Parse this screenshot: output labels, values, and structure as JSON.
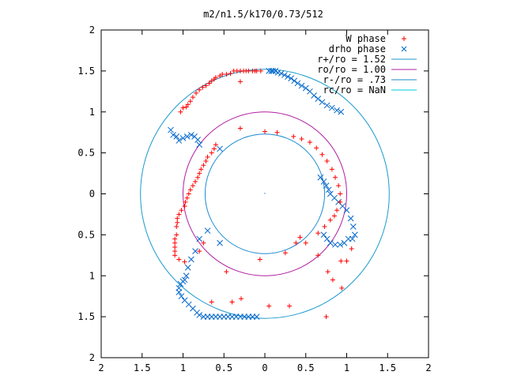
{
  "chart_data": {
    "type": "scatter",
    "title": "m2/n1.5/k170/0.73/512",
    "xlim": [
      -2,
      2
    ],
    "ylim": [
      -2,
      2
    ],
    "x_ticks": [
      -2,
      -1.5,
      -1,
      -0.5,
      0,
      0.5,
      1,
      1.5,
      2
    ],
    "y_ticks": [
      -2,
      -1.5,
      -1,
      -0.5,
      0,
      0.5,
      1,
      1.5,
      2
    ],
    "x_tick_labels": [
      "2",
      "1.5",
      "1",
      "0.5",
      "0",
      "0.5",
      "1",
      "1.5",
      "2"
    ],
    "y_tick_labels": [
      "2",
      "1.5",
      "1",
      "0.5",
      "0",
      "0.5",
      "1",
      "1.5",
      "2"
    ],
    "grid": false,
    "legend_position": "top-right",
    "series": [
      {
        "name": "W phase",
        "marker": "plus",
        "color": "#ff0000",
        "points": [
          [
            -0.05,
            1.5
          ],
          [
            -0.1,
            1.5
          ],
          [
            -0.12,
            1.5
          ],
          [
            -0.15,
            1.5
          ],
          [
            -0.2,
            1.5
          ],
          [
            -0.23,
            1.5
          ],
          [
            -0.26,
            1.5
          ],
          [
            -0.3,
            1.5
          ],
          [
            -0.34,
            1.5
          ],
          [
            -0.38,
            1.5
          ],
          [
            -0.42,
            1.47
          ],
          [
            -0.47,
            1.46
          ],
          [
            -0.52,
            1.46
          ],
          [
            -0.55,
            1.44
          ],
          [
            -0.6,
            1.42
          ],
          [
            -0.62,
            1.4
          ],
          [
            -0.65,
            1.38
          ],
          [
            -0.68,
            1.35
          ],
          [
            -0.72,
            1.32
          ],
          [
            -0.76,
            1.3
          ],
          [
            -0.8,
            1.27
          ],
          [
            -0.84,
            1.23
          ],
          [
            -0.88,
            1.18
          ],
          [
            -0.91,
            1.13
          ],
          [
            -0.94,
            1.09
          ],
          [
            -0.96,
            1.06
          ],
          [
            -1.0,
            1.05
          ],
          [
            -1.03,
            1.0
          ],
          [
            -0.6,
            0.6
          ],
          [
            -0.62,
            0.55
          ],
          [
            -0.65,
            0.5
          ],
          [
            -0.7,
            0.45
          ],
          [
            -0.72,
            0.4
          ],
          [
            -0.75,
            0.35
          ],
          [
            -0.78,
            0.3
          ],
          [
            -0.8,
            0.25
          ],
          [
            -0.82,
            0.2
          ],
          [
            -0.85,
            0.15
          ],
          [
            -0.88,
            0.1
          ],
          [
            -0.91,
            0.05
          ],
          [
            -0.93,
            0.0
          ],
          [
            -0.95,
            -0.05
          ],
          [
            -0.97,
            -0.1
          ],
          [
            -0.98,
            -0.15
          ],
          [
            -1.02,
            -0.2
          ],
          [
            -1.05,
            -0.25
          ],
          [
            -1.07,
            -0.3
          ],
          [
            -1.07,
            -0.35
          ],
          [
            -1.08,
            -0.4
          ],
          [
            -1.08,
            -0.5
          ],
          [
            -1.1,
            -0.55
          ],
          [
            -1.1,
            -0.6
          ],
          [
            -1.1,
            -0.65
          ],
          [
            -1.1,
            -0.7
          ],
          [
            -1.1,
            -0.75
          ],
          [
            -1.05,
            -0.8
          ],
          [
            -0.98,
            -0.83
          ],
          [
            -0.8,
            -0.7
          ],
          [
            -0.75,
            -0.6
          ],
          [
            -0.4,
            -1.32
          ],
          [
            -0.65,
            -1.32
          ],
          [
            -0.3,
            1.37
          ],
          [
            -0.06,
            -0.8
          ],
          [
            -0.47,
            -0.95
          ],
          [
            -0.29,
            -1.28
          ],
          [
            0.05,
            -1.37
          ],
          [
            0.3,
            -1.37
          ],
          [
            0.25,
            -0.72
          ],
          [
            0.38,
            -0.6
          ],
          [
            0.43,
            -0.53
          ],
          [
            0.65,
            -0.48
          ],
          [
            0.73,
            -0.4
          ],
          [
            0.8,
            -0.32
          ],
          [
            0.85,
            -0.27
          ],
          [
            0.88,
            -0.2
          ],
          [
            0.92,
            -0.1
          ],
          [
            0.92,
            0.0
          ],
          [
            0.9,
            0.1
          ],
          [
            0.86,
            0.2
          ],
          [
            0.82,
            0.3
          ],
          [
            0.76,
            0.4
          ],
          [
            0.7,
            0.48
          ],
          [
            0.63,
            0.56
          ],
          [
            0.55,
            0.63
          ],
          [
            0.45,
            0.67
          ],
          [
            0.35,
            0.7
          ],
          [
            0.15,
            0.75
          ],
          [
            0.0,
            0.76
          ],
          [
            -0.3,
            0.8
          ],
          [
            0.5,
            -0.6
          ],
          [
            0.65,
            -0.75
          ],
          [
            0.77,
            -0.95
          ],
          [
            0.83,
            -1.05
          ],
          [
            0.94,
            -1.15
          ],
          [
            1.0,
            -0.82
          ],
          [
            0.75,
            -1.5
          ],
          [
            1.06,
            -0.67
          ],
          [
            0.93,
            -0.82
          ]
        ]
      },
      {
        "name": "drho phase",
        "marker": "cross",
        "color": "#0066cc",
        "points": [
          [
            0.05,
            1.5
          ],
          [
            0.08,
            1.5
          ],
          [
            0.1,
            1.5
          ],
          [
            0.13,
            1.5
          ],
          [
            0.16,
            1.48
          ],
          [
            0.2,
            1.47
          ],
          [
            0.24,
            1.45
          ],
          [
            0.28,
            1.43
          ],
          [
            0.32,
            1.41
          ],
          [
            0.36,
            1.38
          ],
          [
            0.4,
            1.35
          ],
          [
            0.45,
            1.32
          ],
          [
            0.5,
            1.29
          ],
          [
            0.55,
            1.25
          ],
          [
            0.6,
            1.2
          ],
          [
            0.65,
            1.16
          ],
          [
            0.7,
            1.12
          ],
          [
            0.76,
            1.08
          ],
          [
            0.82,
            1.05
          ],
          [
            0.88,
            1.02
          ],
          [
            0.93,
            1.0
          ],
          [
            -1.15,
            0.78
          ],
          [
            -1.12,
            0.72
          ],
          [
            -1.08,
            0.7
          ],
          [
            -1.05,
            0.65
          ],
          [
            -1.0,
            0.68
          ],
          [
            -0.95,
            0.7
          ],
          [
            -0.9,
            0.72
          ],
          [
            -0.86,
            0.7
          ],
          [
            -0.82,
            0.66
          ],
          [
            -0.8,
            0.6
          ],
          [
            -0.55,
            0.55
          ],
          [
            -0.55,
            -0.6
          ],
          [
            -0.7,
            -0.45
          ],
          [
            -0.8,
            -0.55
          ],
          [
            -0.85,
            -0.7
          ],
          [
            -0.9,
            -0.8
          ],
          [
            -0.94,
            -0.9
          ],
          [
            -0.96,
            -1.0
          ],
          [
            -0.98,
            -1.05
          ],
          [
            -1.0,
            -1.07
          ],
          [
            -1.03,
            -1.1
          ],
          [
            -1.05,
            -1.15
          ],
          [
            -1.05,
            -1.2
          ],
          [
            -1.02,
            -1.25
          ],
          [
            -0.98,
            -1.3
          ],
          [
            -0.93,
            -1.35
          ],
          [
            -0.88,
            -1.4
          ],
          [
            -0.83,
            -1.45
          ],
          [
            -0.8,
            -1.48
          ],
          [
            -0.75,
            -1.5
          ],
          [
            -0.7,
            -1.5
          ],
          [
            -0.65,
            -1.5
          ],
          [
            -0.6,
            -1.5
          ],
          [
            -0.55,
            -1.5
          ],
          [
            -0.5,
            -1.5
          ],
          [
            -0.45,
            -1.5
          ],
          [
            -0.4,
            -1.5
          ],
          [
            -0.35,
            -1.5
          ],
          [
            -0.3,
            -1.5
          ],
          [
            -0.25,
            -1.5
          ],
          [
            -0.2,
            -1.5
          ],
          [
            -0.15,
            -1.5
          ],
          [
            -0.1,
            -1.5
          ],
          [
            0.68,
            0.2
          ],
          [
            0.72,
            0.15
          ],
          [
            0.75,
            0.1
          ],
          [
            0.78,
            0.05
          ],
          [
            0.8,
            0.0
          ],
          [
            0.85,
            -0.05
          ],
          [
            0.9,
            -0.1
          ],
          [
            0.95,
            -0.15
          ],
          [
            1.0,
            -0.2
          ],
          [
            1.05,
            -0.3
          ],
          [
            1.08,
            -0.4
          ],
          [
            1.1,
            -0.5
          ],
          [
            1.07,
            -0.55
          ],
          [
            1.02,
            -0.55
          ],
          [
            0.97,
            -0.6
          ],
          [
            0.92,
            -0.62
          ],
          [
            0.86,
            -0.62
          ],
          [
            0.8,
            -0.6
          ],
          [
            0.76,
            -0.55
          ],
          [
            0.72,
            -0.5
          ]
        ]
      }
    ],
    "circles": [
      {
        "name": "r+/ro = 1.52",
        "radius": 1.52,
        "color": "#1a9acd"
      },
      {
        "name": "ro/ro = 1.00",
        "radius": 1.0,
        "color": "#b01fa0"
      },
      {
        "name": "r-/ro = .73",
        "radius": 0.73,
        "color": "#1a8ad2"
      },
      {
        "name": "rc/ro = NaN",
        "radius": null,
        "color": "#00c8d8"
      }
    ]
  }
}
